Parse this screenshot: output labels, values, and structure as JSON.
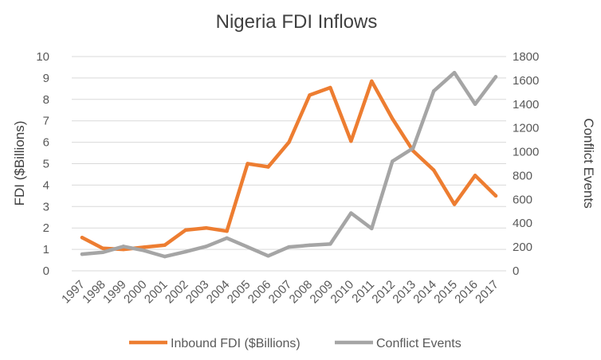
{
  "chart_data": {
    "type": "line",
    "title": "Nigeria FDI Inflows",
    "x": [
      "1997",
      "1998",
      "1999",
      "2000",
      "2001",
      "2002",
      "2003",
      "2004",
      "2005",
      "2006",
      "2007",
      "2008",
      "2009",
      "2010",
      "2011",
      "2012",
      "2013",
      "2014",
      "2015",
      "2016",
      "2017"
    ],
    "series": [
      {
        "name": "Inbound FDI ($Billions)",
        "axis": "left",
        "color": "#ED7D31",
        "values": [
          1.55,
          1.05,
          1.0,
          1.1,
          1.2,
          1.9,
          2.0,
          1.85,
          5.0,
          4.85,
          6.0,
          8.2,
          8.55,
          6.05,
          8.85,
          7.1,
          5.6,
          4.7,
          3.1,
          4.45,
          3.5
        ]
      },
      {
        "name": "Conflict Events",
        "axis": "right",
        "color": "#A5A5A5",
        "values": [
          140,
          155,
          205,
          170,
          120,
          160,
          205,
          275,
          200,
          125,
          200,
          215,
          225,
          485,
          355,
          920,
          1030,
          1510,
          1665,
          1400,
          1630
        ]
      }
    ],
    "ylabel": "FDI ($Billions)",
    "y2label": "Conflict Events",
    "ylim": [
      0,
      10
    ],
    "y2lim": [
      0,
      1800
    ],
    "yticks": [
      "0",
      "1",
      "2",
      "3",
      "4",
      "5",
      "6",
      "7",
      "8",
      "9",
      "10"
    ],
    "y2ticks": [
      "0",
      "200",
      "400",
      "600",
      "800",
      "1000",
      "1200",
      "1400",
      "1600",
      "1800"
    ],
    "grid": true,
    "legend": "bottom"
  }
}
